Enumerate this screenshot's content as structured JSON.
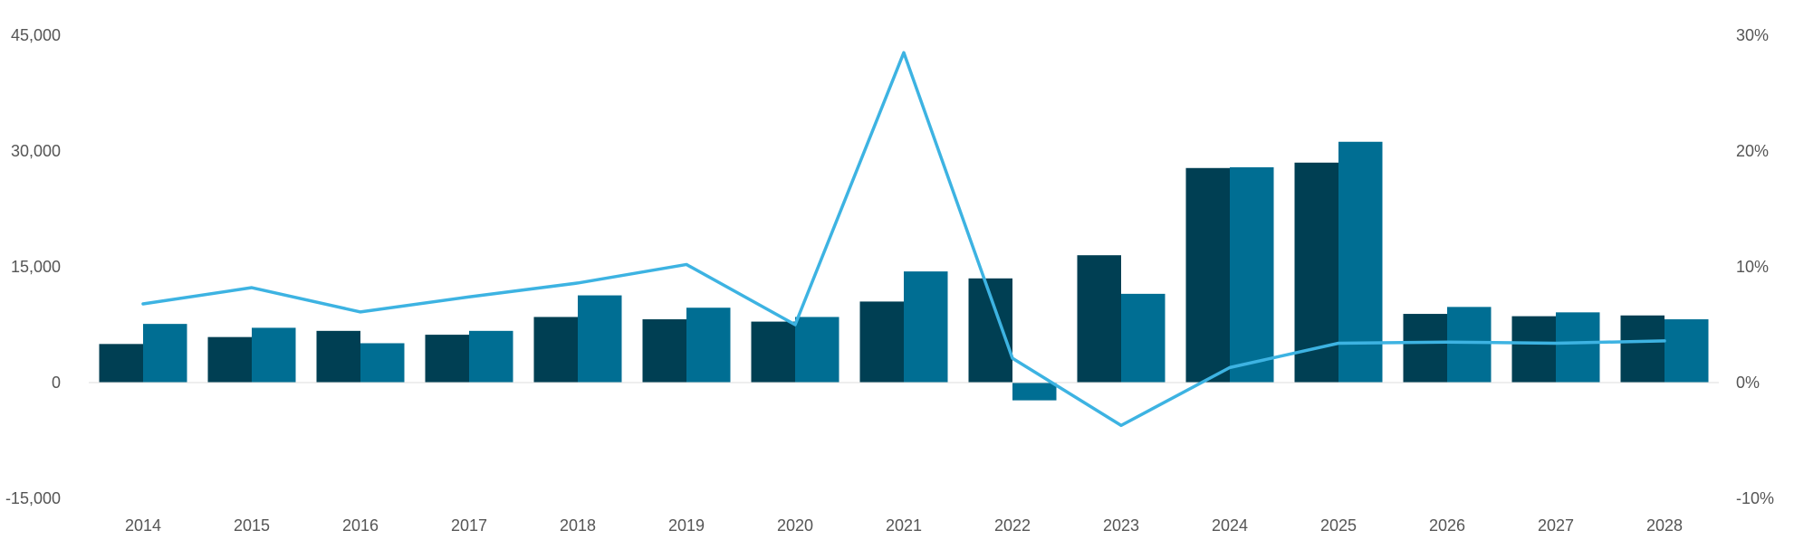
{
  "chart_data": {
    "type": "bar",
    "categories": [
      "2014",
      "2015",
      "2016",
      "2017",
      "2018",
      "2019",
      "2020",
      "2021",
      "2022",
      "2023",
      "2024",
      "2025",
      "2026",
      "2027",
      "2028"
    ],
    "series": [
      {
        "type": "bar",
        "axis": "left",
        "color": "#003f53",
        "values": [
          5000,
          5900,
          6700,
          6200,
          8500,
          8200,
          7900,
          10500,
          13500,
          16500,
          27800,
          28500,
          8900,
          8600,
          8700
        ]
      },
      {
        "type": "bar",
        "axis": "left",
        "color": "#006e93",
        "values": [
          7600,
          7100,
          5100,
          6700,
          11300,
          9700,
          8500,
          14400,
          -2300,
          11500,
          27900,
          31200,
          9800,
          9100,
          8200
        ]
      },
      {
        "type": "line",
        "axis": "right",
        "color": "#3db3e2",
        "values": [
          6.8,
          8.2,
          6.1,
          7.4,
          8.6,
          10.2,
          5.0,
          28.5,
          2.1,
          -3.7,
          1.3,
          3.4,
          3.5,
          3.4,
          3.6
        ]
      }
    ],
    "y_left": {
      "ylim": [
        -15000,
        45000
      ],
      "ticks": [
        "-15,000",
        "0",
        "15,000",
        "30,000",
        "45,000"
      ],
      "tick_values": [
        -15000,
        0,
        15000,
        30000,
        45000
      ]
    },
    "y_right": {
      "ylim": [
        -10,
        30
      ],
      "ticks": [
        "-10%",
        "0%",
        "10%",
        "20%",
        "30%"
      ],
      "tick_values": [
        -10,
        0,
        10,
        20,
        30
      ]
    },
    "grid": false,
    "legend": "none",
    "baseline_color": "#dddddd"
  }
}
